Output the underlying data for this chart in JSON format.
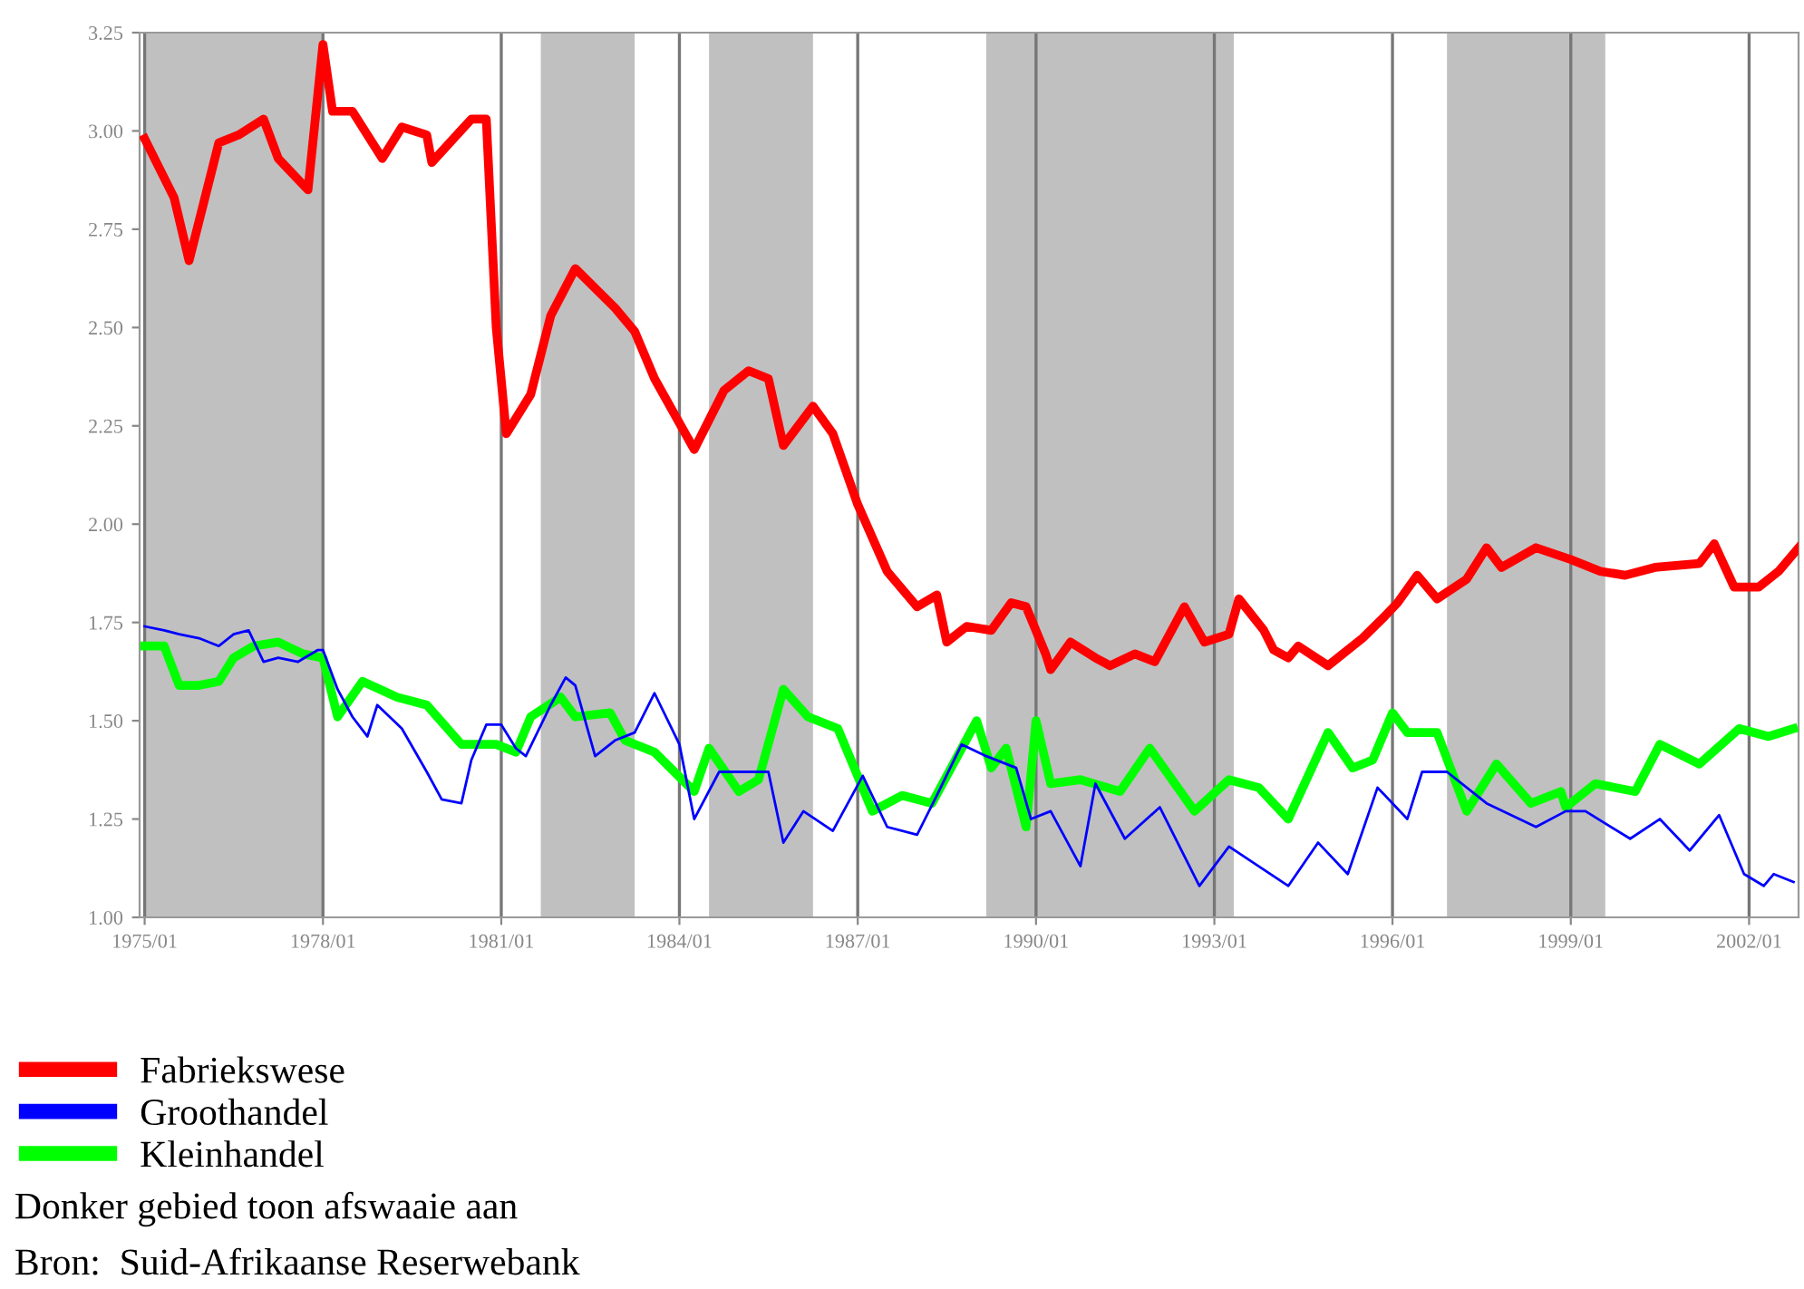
{
  "chart_data": {
    "type": "line",
    "xlim": [
      "1974-12",
      "2002-11"
    ],
    "ylim": [
      1.0,
      3.25
    ],
    "xticks": [
      {
        "value": "1975-01",
        "label": "1975/01"
      },
      {
        "value": "1978-01",
        "label": "1978/01"
      },
      {
        "value": "1981-01",
        "label": "1981/01"
      },
      {
        "value": "1984-01",
        "label": "1984/01"
      },
      {
        "value": "1987-01",
        "label": "1987/01"
      },
      {
        "value": "1990-01",
        "label": "1990/01"
      },
      {
        "value": "1993-01",
        "label": "1993/01"
      },
      {
        "value": "1996-01",
        "label": "1996/01"
      },
      {
        "value": "1999-01",
        "label": "1999/01"
      },
      {
        "value": "2002-01",
        "label": "2002/01"
      }
    ],
    "yticks": [
      {
        "value": 1.0,
        "label": "1.00"
      },
      {
        "value": 1.25,
        "label": "1.25"
      },
      {
        "value": 1.5,
        "label": "1.50"
      },
      {
        "value": 1.75,
        "label": "1.75"
      },
      {
        "value": 2.0,
        "label": "2.00"
      },
      {
        "value": 2.25,
        "label": "2.25"
      },
      {
        "value": 2.5,
        "label": "2.50"
      },
      {
        "value": 2.75,
        "label": "2.75"
      },
      {
        "value": 3.0,
        "label": "3.00"
      },
      {
        "value": 3.25,
        "label": "3.25"
      }
    ],
    "grid": "x",
    "legend": "bottom left",
    "bands": [
      {
        "axis": "x",
        "from": "1975-01",
        "to": "1978-01",
        "color": "#c0c0c0"
      },
      {
        "axis": "x",
        "from": "1981-09",
        "to": "1983-04",
        "color": "#c0c0c0"
      },
      {
        "axis": "x",
        "from": "1984-07",
        "to": "1986-04",
        "color": "#c0c0c0"
      },
      {
        "axis": "x",
        "from": "1989-03",
        "to": "1993-05",
        "color": "#c0c0c0"
      },
      {
        "axis": "x",
        "from": "1996-12",
        "to": "1999-08",
        "color": "#c0c0c0"
      }
    ],
    "series": [
      {
        "name": "Fabriekswese",
        "color": "#ff0000",
        "x": [
          "1975-01",
          "1975-07",
          "1975-10",
          "1976-04",
          "1976-08",
          "1977-01",
          "1977-04",
          "1977-10",
          "1978-01",
          "1978-03",
          "1978-07",
          "1979-01",
          "1979-05",
          "1979-10",
          "1979-11",
          "1980-07",
          "1980-10",
          "1980-12",
          "1981-02",
          "1981-07",
          "1981-11",
          "1982-04",
          "1982-12",
          "1983-04",
          "1983-08",
          "1984-04",
          "1984-10",
          "1985-03",
          "1985-07",
          "1985-10",
          "1986-04",
          "1986-08",
          "1987-01",
          "1987-07",
          "1988-01",
          "1988-05",
          "1988-07",
          "1988-11",
          "1989-04",
          "1989-08",
          "1989-11",
          "1990-03",
          "1990-04",
          "1990-08",
          "1991-01",
          "1991-04",
          "1991-09",
          "1992-01",
          "1992-07",
          "1992-11",
          "1993-04",
          "1993-06",
          "1993-11",
          "1994-01",
          "1994-04",
          "1994-06",
          "1994-12",
          "1995-07",
          "1995-11",
          "1996-02",
          "1996-06",
          "1996-10",
          "1997-04",
          "1997-08",
          "1997-11",
          "1998-06",
          "1999-01",
          "1999-07",
          "1999-12",
          "2000-06",
          "2001-03",
          "2001-06",
          "2001-10",
          "2002-03",
          "2002-07",
          "2002-11"
        ],
        "values": [
          2.98,
          2.83,
          2.67,
          2.97,
          2.99,
          3.03,
          2.93,
          2.85,
          3.22,
          3.05,
          3.05,
          2.93,
          3.01,
          2.99,
          2.92,
          3.03,
          3.03,
          2.5,
          2.23,
          2.33,
          2.53,
          2.65,
          2.55,
          2.49,
          2.37,
          2.19,
          2.34,
          2.39,
          2.37,
          2.2,
          2.3,
          2.23,
          2.05,
          1.88,
          1.79,
          1.82,
          1.7,
          1.74,
          1.73,
          1.8,
          1.79,
          1.67,
          1.63,
          1.7,
          1.66,
          1.64,
          1.67,
          1.65,
          1.79,
          1.7,
          1.72,
          1.81,
          1.73,
          1.68,
          1.66,
          1.69,
          1.64,
          1.71,
          1.76,
          1.8,
          1.87,
          1.81,
          1.86,
          1.94,
          1.89,
          1.94,
          1.91,
          1.88,
          1.87,
          1.89,
          1.9,
          1.95,
          1.84,
          1.84,
          1.88,
          1.94
        ]
      },
      {
        "name": "Groothandel",
        "color": "#0000ff",
        "x": [
          "1975-01",
          "1975-05",
          "1975-08",
          "1975-12",
          "1976-04",
          "1976-07",
          "1976-10",
          "1977-01",
          "1977-04",
          "1977-08",
          "1977-12",
          "1978-01",
          "1978-04",
          "1978-07",
          "1978-10",
          "1978-12",
          "1979-05",
          "1979-10",
          "1980-01",
          "1980-05",
          "1980-07",
          "1980-10",
          "1981-01",
          "1981-04",
          "1981-06",
          "1981-11",
          "1982-02",
          "1982-04",
          "1982-08",
          "1982-12",
          "1983-04",
          "1983-08",
          "1984-01",
          "1984-04",
          "1984-09",
          "1984-12",
          "1985-07",
          "1985-10",
          "1986-02",
          "1986-08",
          "1987-02",
          "1987-07",
          "1988-01",
          "1988-05",
          "1988-10",
          "1989-03",
          "1989-09",
          "1989-12",
          "1990-04",
          "1990-10",
          "1991-01",
          "1991-07",
          "1992-02",
          "1992-10",
          "1993-04",
          "1994-04",
          "1994-10",
          "1995-04",
          "1995-10",
          "1996-04",
          "1996-07",
          "1996-12",
          "1997-08",
          "1998-06",
          "1998-12",
          "1999-04",
          "2000-01",
          "2000-07",
          "2001-01",
          "2001-07",
          "2001-12",
          "2002-04",
          "2002-06",
          "2002-10"
        ],
        "values": [
          1.74,
          1.73,
          1.72,
          1.71,
          1.69,
          1.72,
          1.73,
          1.65,
          1.66,
          1.65,
          1.68,
          1.68,
          1.58,
          1.51,
          1.46,
          1.54,
          1.48,
          1.37,
          1.3,
          1.29,
          1.4,
          1.49,
          1.49,
          1.43,
          1.41,
          1.54,
          1.61,
          1.59,
          1.41,
          1.45,
          1.47,
          1.57,
          1.44,
          1.25,
          1.37,
          1.37,
          1.37,
          1.19,
          1.27,
          1.22,
          1.36,
          1.23,
          1.21,
          1.31,
          1.44,
          1.41,
          1.38,
          1.25,
          1.27,
          1.13,
          1.34,
          1.2,
          1.28,
          1.08,
          1.18,
          1.08,
          1.19,
          1.11,
          1.33,
          1.25,
          1.37,
          1.37,
          1.29,
          1.23,
          1.27,
          1.27,
          1.2,
          1.25,
          1.17,
          1.26,
          1.11,
          1.08,
          1.11,
          1.09
        ]
      },
      {
        "name": "Kleinhandel",
        "color": "#00ff00",
        "x": [
          "1975-01",
          "1975-05",
          "1975-08",
          "1975-12",
          "1976-04",
          "1976-07",
          "1976-11",
          "1977-04",
          "1977-09",
          "1978-01",
          "1978-04",
          "1978-09",
          "1979-04",
          "1979-10",
          "1980-05",
          "1980-12",
          "1981-04",
          "1981-07",
          "1982-01",
          "1982-04",
          "1982-11",
          "1983-02",
          "1983-08",
          "1984-04",
          "1984-07",
          "1985-01",
          "1985-05",
          "1985-10",
          "1986-03",
          "1986-09",
          "1987-04",
          "1987-10",
          "1988-04",
          "1989-01",
          "1989-04",
          "1989-07",
          "1989-11",
          "1990-01",
          "1990-04",
          "1990-10",
          "1991-06",
          "1991-12",
          "1992-09",
          "1993-04",
          "1993-10",
          "1994-04",
          "1994-12",
          "1995-05",
          "1995-09",
          "1996-01",
          "1996-04",
          "1996-10",
          "1997-04",
          "1997-10",
          "1998-05",
          "1998-11",
          "1998-12",
          "1999-06",
          "2000-02",
          "2000-07",
          "2001-03",
          "2001-11",
          "2002-05",
          "2002-10"
        ],
        "values": [
          1.69,
          1.69,
          1.59,
          1.59,
          1.6,
          1.66,
          1.69,
          1.7,
          1.67,
          1.66,
          1.51,
          1.6,
          1.56,
          1.54,
          1.44,
          1.44,
          1.42,
          1.51,
          1.56,
          1.51,
          1.52,
          1.45,
          1.42,
          1.32,
          1.43,
          1.32,
          1.35,
          1.58,
          1.51,
          1.48,
          1.27,
          1.31,
          1.29,
          1.5,
          1.38,
          1.43,
          1.23,
          1.5,
          1.34,
          1.35,
          1.32,
          1.43,
          1.27,
          1.35,
          1.33,
          1.25,
          1.47,
          1.38,
          1.4,
          1.52,
          1.47,
          1.47,
          1.27,
          1.39,
          1.29,
          1.32,
          1.28,
          1.34,
          1.32,
          1.44,
          1.39,
          1.48,
          1.46,
          1.48
        ]
      }
    ],
    "annotations": [
      "Donker gebied toon afswaaie aan",
      "Bron:  Suid-Afrikaanse Reserwebank"
    ]
  }
}
